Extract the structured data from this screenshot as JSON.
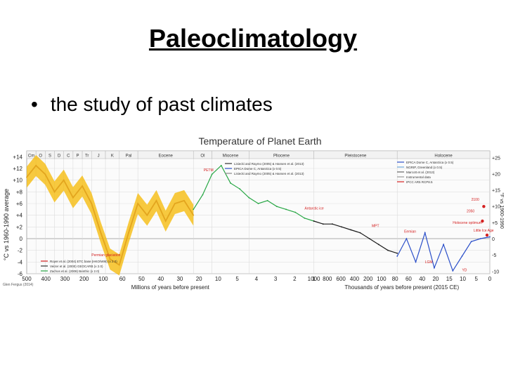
{
  "slide": {
    "title": "Paleoclimatology",
    "bullet": "the study of past climates",
    "bullet_marker": "•"
  },
  "chart_data": {
    "type": "line",
    "title": "Temperature of Planet Earth",
    "ylabel": "°C vs 1960-1990 average",
    "ylim": [
      -6,
      15
    ],
    "y_ticks": [
      "+14",
      "+12",
      "+10",
      "+8",
      "+6",
      "+4",
      "+2",
      "0",
      "-2",
      "-4",
      "-6"
    ],
    "right_ticks": [
      "+25",
      "+20",
      "+15",
      "+10",
      "+5",
      "0",
      "-5",
      "-10"
    ],
    "right_label": "°F vs 1960-1990",
    "colors": {
      "phanerozoic": "#e3a51e",
      "paleogene": "#28a745",
      "neogene": "#1a1a1a",
      "ice_core": "#2b4fc9",
      "modern": "#d42020",
      "band": "#f5b800"
    },
    "periods": [
      "Cm",
      "O",
      "S",
      "D",
      "C",
      "P",
      "Tr",
      "J",
      "K",
      "Pal",
      "Eocene",
      "Ol",
      "Miocene",
      "Pliocene",
      "Pleistocene",
      "Holocene"
    ],
    "x_sections": [
      {
        "label": "Millions of years before present",
        "ticks": [
          "500",
          "400",
          "300",
          "200",
          "100",
          "60",
          "50",
          "40",
          "30",
          "20",
          "10",
          "5",
          "4",
          "3",
          "2",
          "1"
        ]
      },
      {
        "label": "Thousands of years before present (2015 CE)",
        "ticks": [
          "1000",
          "800",
          "600",
          "400",
          "200",
          "100",
          "80",
          "60",
          "40",
          "20",
          "15",
          "10",
          "5",
          "0"
        ]
      }
    ],
    "annotations": [
      "PETM",
      "Permian glaciation",
      "Antarctic ice",
      "MPT",
      "Eemian",
      "LGM",
      "YD",
      "2100",
      "2050",
      "Holocene optimum",
      "Little Ice Age"
    ],
    "legend_left": [
      "Royer et al. (2004) ETC base (HKO/WM) (x 2.0)",
      "Veizer et al. (2000) GEOCARB (x 2.0)",
      "Zachos et al. (2008) Benthic (x 2.0)"
    ],
    "legend_mid": [
      "Lisiecki and Raymo (2005) & Hansen et al. (2013)",
      "EPICA Dome C, Antarctica (x 0.5)",
      "Lisiecki and Raymo (2005) & Hansen et al. (2013)"
    ],
    "legend_right": [
      "EPICA Dome C, Antarctica (x 0.5)",
      "NGRIP, Greenland (x 0.5)",
      "Marcott et al. (2013)",
      "Instrumental data",
      "IPCC AR5 RCP8.5"
    ],
    "credit": "Glen Fergus (2014)",
    "series": [
      {
        "name": "Phanerozoic (Royer/Veizer)",
        "points": [
          [
            0.0,
            10.5
          ],
          [
            0.02,
            12.5
          ],
          [
            0.04,
            11.0
          ],
          [
            0.06,
            8.0
          ],
          [
            0.08,
            10.0
          ],
          [
            0.1,
            7.0
          ],
          [
            0.12,
            9.0
          ],
          [
            0.14,
            6.0
          ],
          [
            0.16,
            1.0
          ],
          [
            0.18,
            -3.5
          ],
          [
            0.2,
            -4.5
          ],
          [
            0.22,
            1.0
          ],
          [
            0.24,
            6.0
          ],
          [
            0.26,
            4.0
          ],
          [
            0.28,
            6.5
          ],
          [
            0.3,
            3.0
          ],
          [
            0.32,
            6.0
          ],
          [
            0.34,
            6.5
          ],
          [
            0.36,
            4.0
          ]
        ]
      },
      {
        "name": "Paleogene (Zachos)",
        "points": [
          [
            0.36,
            5.0
          ],
          [
            0.38,
            7.5
          ],
          [
            0.4,
            11.0
          ],
          [
            0.42,
            12.5
          ],
          [
            0.44,
            9.5
          ],
          [
            0.46,
            8.5
          ],
          [
            0.48,
            7.0
          ],
          [
            0.5,
            6.0
          ],
          [
            0.52,
            6.5
          ],
          [
            0.54,
            5.5
          ],
          [
            0.56,
            5.0
          ],
          [
            0.58,
            4.5
          ],
          [
            0.6,
            3.5
          ],
          [
            0.62,
            3.0
          ]
        ]
      },
      {
        "name": "Neogene (Lisiecki & Raymo)",
        "points": [
          [
            0.62,
            3.0
          ],
          [
            0.64,
            2.5
          ],
          [
            0.66,
            2.5
          ],
          [
            0.68,
            2.0
          ],
          [
            0.7,
            1.5
          ],
          [
            0.72,
            1.0
          ],
          [
            0.74,
            0.0
          ],
          [
            0.76,
            -1.0
          ],
          [
            0.78,
            -2.0
          ],
          [
            0.8,
            -2.5
          ]
        ]
      },
      {
        "name": "Ice cores (EPICA/NGRIP)",
        "points": [
          [
            0.8,
            -3.0
          ],
          [
            0.82,
            0.0
          ],
          [
            0.84,
            -4.0
          ],
          [
            0.86,
            1.0
          ],
          [
            0.88,
            -5.0
          ],
          [
            0.9,
            -1.0
          ],
          [
            0.92,
            -5.5
          ],
          [
            0.94,
            -3.0
          ],
          [
            0.96,
            -0.5
          ],
          [
            0.98,
            0.0
          ],
          [
            1.0,
            0.3
          ]
        ]
      }
    ]
  }
}
